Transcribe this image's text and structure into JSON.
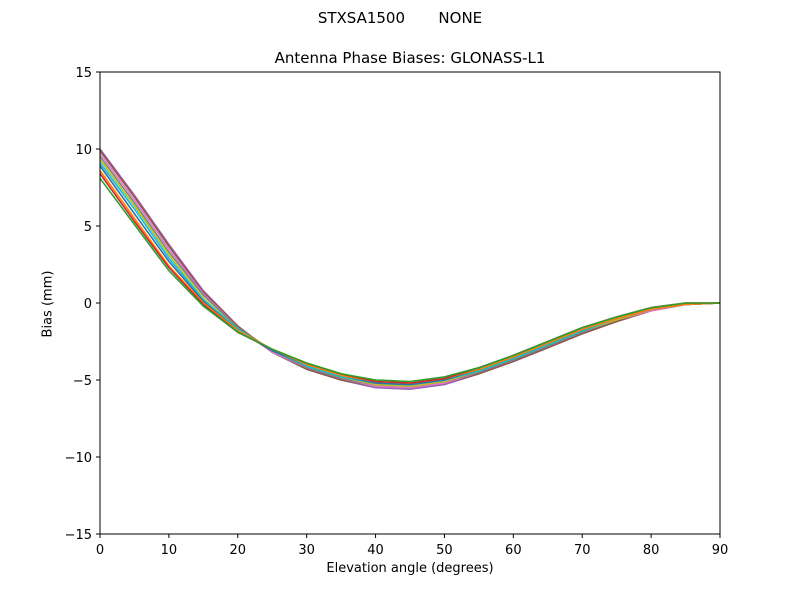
{
  "figure": {
    "station": "STXSA1500",
    "radome": "NONE"
  },
  "chart_data": {
    "type": "line",
    "title": "Antenna Phase Biases: GLONASS-L1",
    "xlabel": "Elevation angle (degrees)",
    "ylabel": "Bias (mm)",
    "xlim": [
      0,
      90
    ],
    "ylim": [
      -15,
      15
    ],
    "xticks": [
      0,
      10,
      20,
      30,
      40,
      50,
      60,
      70,
      80,
      90
    ],
    "yticks": [
      -15,
      -10,
      -5,
      0,
      5,
      10,
      15
    ],
    "ytick_labels": [
      "−15",
      "−10",
      "−5",
      "0",
      "5",
      "10",
      "15"
    ],
    "grid": false,
    "legend": "none",
    "x": [
      0,
      5,
      10,
      15,
      20,
      25,
      30,
      35,
      40,
      45,
      50,
      55,
      60,
      65,
      70,
      75,
      80,
      85,
      90
    ],
    "series": [
      {
        "color": "#9467bd",
        "values": [
          10.0,
          7.0,
          3.8,
          0.8,
          -1.5,
          -3.2,
          -4.3,
          -5.0,
          -5.5,
          -5.6,
          -5.3,
          -4.6,
          -3.8,
          -2.9,
          -2.0,
          -1.2,
          -0.5,
          -0.1,
          0.0
        ]
      },
      {
        "color": "#8c564b",
        "values": [
          9.9,
          6.9,
          3.7,
          0.7,
          -1.5,
          -3.2,
          -4.3,
          -5.0,
          -5.4,
          -5.5,
          -5.2,
          -4.6,
          -3.8,
          -2.9,
          -2.0,
          -1.2,
          -0.5,
          -0.1,
          0.0
        ]
      },
      {
        "color": "#e377c2",
        "values": [
          9.7,
          6.7,
          3.5,
          0.6,
          -1.6,
          -3.2,
          -4.2,
          -4.9,
          -5.4,
          -5.5,
          -5.2,
          -4.5,
          -3.7,
          -2.8,
          -1.9,
          -1.1,
          -0.5,
          -0.1,
          0.0
        ]
      },
      {
        "color": "#7f7f7f",
        "values": [
          9.5,
          6.5,
          3.3,
          0.5,
          -1.6,
          -3.1,
          -4.2,
          -4.9,
          -5.3,
          -5.4,
          -5.1,
          -4.5,
          -3.7,
          -2.8,
          -1.9,
          -1.1,
          -0.4,
          -0.1,
          0.0
        ]
      },
      {
        "color": "#bcbd22",
        "values": [
          9.3,
          6.3,
          3.1,
          0.3,
          -1.7,
          -3.1,
          -4.1,
          -4.8,
          -5.3,
          -5.4,
          -5.1,
          -4.4,
          -3.6,
          -2.7,
          -1.8,
          -1.1,
          -0.4,
          -0.1,
          0.0
        ]
      },
      {
        "color": "#17becf",
        "values": [
          9.1,
          6.1,
          2.9,
          0.2,
          -1.7,
          -3.1,
          -4.1,
          -4.8,
          -5.2,
          -5.3,
          -5.0,
          -4.4,
          -3.6,
          -2.7,
          -1.8,
          -1.0,
          -0.4,
          -0.1,
          0.0
        ]
      },
      {
        "color": "#1f77b4",
        "values": [
          8.9,
          5.8,
          2.7,
          0.1,
          -1.8,
          -3.1,
          -4.0,
          -4.7,
          -5.2,
          -5.3,
          -5.0,
          -4.3,
          -3.5,
          -2.6,
          -1.7,
          -1.0,
          -0.4,
          -0.1,
          0.0
        ]
      },
      {
        "color": "#ff7f0e",
        "values": [
          8.6,
          5.5,
          2.4,
          0.0,
          -1.8,
          -3.0,
          -4.0,
          -4.7,
          -5.1,
          -5.2,
          -4.9,
          -4.3,
          -3.5,
          -2.6,
          -1.7,
          -1.0,
          -0.4,
          -0.1,
          0.0
        ]
      },
      {
        "color": "#d62728",
        "values": [
          8.4,
          5.3,
          2.3,
          -0.1,
          -1.9,
          -3.0,
          -3.9,
          -4.6,
          -5.1,
          -5.2,
          -4.9,
          -4.2,
          -3.4,
          -2.5,
          -1.6,
          -0.9,
          -0.3,
          0.0,
          0.0
        ]
      },
      {
        "color": "#2ca02c",
        "values": [
          8.1,
          5.1,
          2.1,
          -0.2,
          -1.9,
          -3.0,
          -3.9,
          -4.6,
          -5.0,
          -5.1,
          -4.8,
          -4.2,
          -3.4,
          -2.5,
          -1.6,
          -0.9,
          -0.3,
          0.0,
          0.0
        ]
      }
    ]
  }
}
